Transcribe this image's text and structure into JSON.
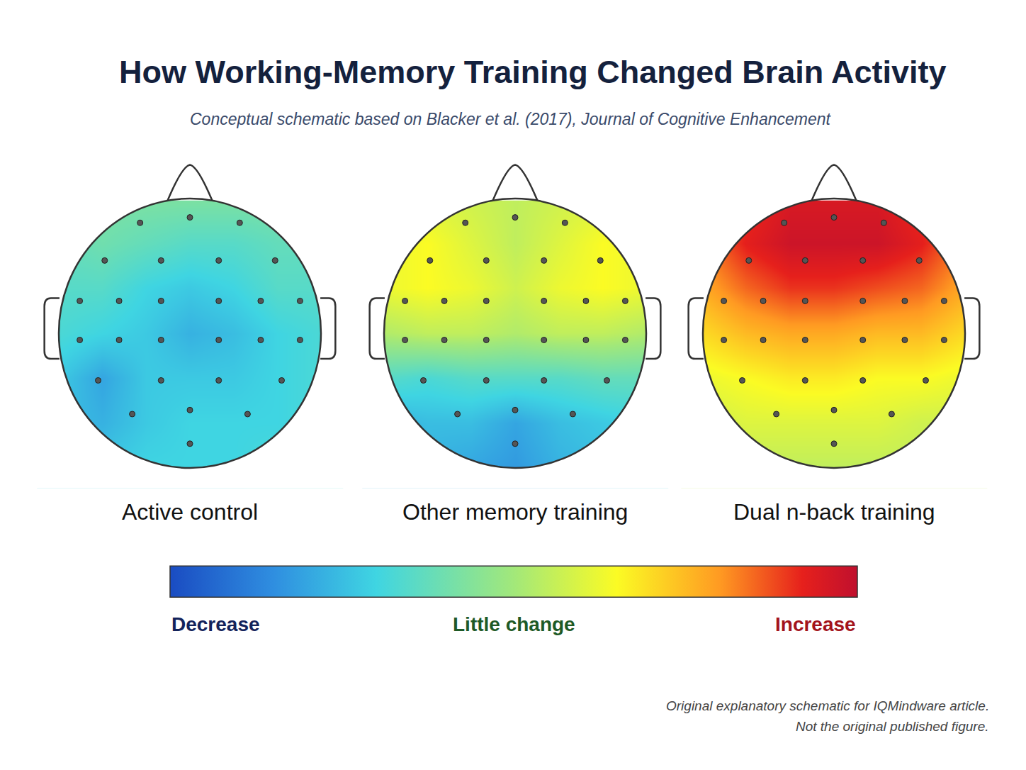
{
  "chart_data": {
    "type": "heatmap",
    "title": "How Working-Memory Training Changed Brain Activity",
    "subtitle": "Conceptual schematic based on Blacker et al. (2017), Journal of Cognitive Enhancement",
    "annotations": [
      "Original explanatory schematic for IQMindware article.",
      "Not the original published figure."
    ],
    "tick_labels": false,
    "xlim": [
      -1.2,
      1.2
    ],
    "ylim": [
      -1.15,
      1.35
    ],
    "x": [
      -1,
      -0.667,
      -0.333,
      0,
      0.333,
      0.667,
      1
    ],
    "y": [
      -1,
      -0.667,
      -0.333,
      0,
      0.333,
      0.667,
      1
    ],
    "electrodes": {
      "x": [
        -0.38,
        0,
        0.38,
        -0.65,
        -0.22,
        0.22,
        0.65,
        -0.84,
        -0.54,
        -0.22,
        0.22,
        0.54,
        0.84,
        -0.84,
        -0.54,
        -0.22,
        0.22,
        0.54,
        0.84,
        -0.7,
        -0.22,
        0.22,
        0.7,
        -0.44,
        0,
        0.44,
        0
      ],
      "y": [
        0.82,
        0.86,
        0.82,
        0.54,
        0.54,
        0.54,
        0.54,
        0.24,
        0.24,
        0.24,
        0.24,
        0.24,
        0.24,
        -0.05,
        -0.05,
        -0.05,
        -0.05,
        -0.05,
        -0.05,
        -0.35,
        -0.35,
        -0.35,
        -0.35,
        -0.6,
        -0.57,
        -0.6,
        -0.82
      ]
    },
    "colorbar": {
      "range": [
        -1,
        1
      ],
      "ticks": [
        {
          "value": -1,
          "label": "Decrease"
        },
        {
          "value": 0,
          "label": "Little change"
        },
        {
          "value": 1,
          "label": "Increase"
        }
      ]
    },
    "panels": [
      {
        "title": "Active control",
        "cells": [
          [
            -0.45,
            -0.45,
            -0.4,
            -0.4,
            -0.4,
            -0.35,
            -0.35
          ],
          [
            -0.5,
            -0.55,
            -0.45,
            -0.4,
            -0.4,
            -0.4,
            -0.35
          ],
          [
            -0.45,
            -0.6,
            -0.45,
            -0.45,
            -0.45,
            -0.4,
            -0.35
          ],
          [
            -0.35,
            -0.4,
            -0.45,
            -0.55,
            -0.5,
            -0.4,
            -0.35
          ],
          [
            -0.3,
            -0.3,
            -0.4,
            -0.45,
            -0.4,
            -0.3,
            -0.3
          ],
          [
            -0.25,
            -0.2,
            -0.25,
            -0.3,
            -0.3,
            -0.25,
            -0.25
          ],
          [
            -0.2,
            -0.15,
            -0.15,
            -0.15,
            -0.15,
            -0.15,
            -0.2
          ]
        ]
      },
      {
        "title": "Other memory training",
        "cells": [
          [
            -0.55,
            -0.55,
            -0.6,
            -0.65,
            -0.55,
            -0.5,
            -0.45
          ],
          [
            -0.55,
            -0.5,
            -0.5,
            -0.6,
            -0.5,
            -0.45,
            -0.4
          ],
          [
            -0.3,
            -0.35,
            -0.3,
            -0.3,
            -0.3,
            -0.25,
            -0.25
          ],
          [
            0.05,
            0.1,
            0.1,
            0.05,
            0.1,
            0.1,
            0.05
          ],
          [
            0.25,
            0.3,
            0.25,
            0.15,
            0.25,
            0.3,
            0.25
          ],
          [
            0.25,
            0.3,
            0.2,
            0.1,
            0.2,
            0.3,
            0.25
          ],
          [
            0.15,
            0.2,
            0.15,
            0.1,
            0.15,
            0.2,
            0.15
          ]
        ]
      },
      {
        "title": "Dual n-back training",
        "cells": [
          [
            0.1,
            0.1,
            0.1,
            0.1,
            0.1,
            0.1,
            0.1
          ],
          [
            0.15,
            0.2,
            0.2,
            0.2,
            0.2,
            0.15,
            0.15
          ],
          [
            0.25,
            0.3,
            0.35,
            0.35,
            0.3,
            0.3,
            0.25
          ],
          [
            0.4,
            0.5,
            0.55,
            0.55,
            0.5,
            0.5,
            0.4
          ],
          [
            0.55,
            0.7,
            0.8,
            0.8,
            0.75,
            0.7,
            0.55
          ],
          [
            0.65,
            0.85,
            0.95,
            0.95,
            0.95,
            0.85,
            0.65
          ],
          [
            0.6,
            0.8,
            0.9,
            0.9,
            0.9,
            0.8,
            0.6
          ]
        ]
      }
    ]
  }
}
